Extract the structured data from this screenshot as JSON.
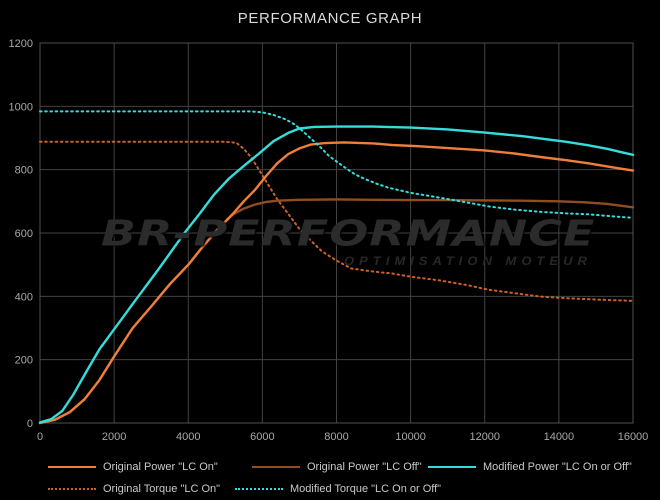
{
  "title": "PERFORMANCE GRAPH",
  "watermark": {
    "main": "BR-PERFORMANCE",
    "sub": "OPTIMISATION MOTEUR"
  },
  "colors": {
    "background": "#000000",
    "grid": "#434343",
    "frame": "#515151",
    "axis_text": "#a8a8a8",
    "title_text": "#d9d9d9",
    "legend_text": "#c9c9c9",
    "orange": "#ee7e3a",
    "brown": "#8e4e22",
    "cyan": "#35dcdc",
    "orange_dotted": "#c96226",
    "watermark": "#2b2b2b"
  },
  "chart_data": {
    "type": "line",
    "title": "PERFORMANCE GRAPH",
    "xlabel": "",
    "ylabel": "",
    "x_axis": {
      "min": 0,
      "max": 16000,
      "tick_step": 2000,
      "ticks": [
        0,
        2000,
        4000,
        6000,
        8000,
        10000,
        12000,
        14000,
        16000
      ]
    },
    "y_axis": {
      "min": 0,
      "max": 1200,
      "tick_step": 200,
      "ticks": [
        0,
        200,
        400,
        600,
        800,
        1000,
        1200
      ]
    },
    "grid": true,
    "legend_position": "bottom",
    "series": [
      {
        "name": "Original Power \"LC On\"",
        "color": "#ee7e3a",
        "style": "solid",
        "points": [
          [
            0,
            0
          ],
          [
            400,
            10
          ],
          [
            800,
            34
          ],
          [
            1200,
            75
          ],
          [
            1600,
            135
          ],
          [
            2000,
            210
          ],
          [
            2500,
            300
          ],
          [
            3000,
            368
          ],
          [
            3500,
            438
          ],
          [
            4000,
            500
          ],
          [
            4400,
            558
          ],
          [
            4800,
            612
          ],
          [
            5200,
            660
          ],
          [
            5500,
            700
          ],
          [
            5800,
            736
          ],
          [
            6100,
            780
          ],
          [
            6400,
            820
          ],
          [
            6700,
            849
          ],
          [
            7000,
            867
          ],
          [
            7300,
            879
          ],
          [
            7700,
            884
          ],
          [
            8200,
            886
          ],
          [
            9000,
            883
          ],
          [
            9500,
            878
          ],
          [
            10200,
            874
          ],
          [
            11000,
            868
          ],
          [
            12000,
            861
          ],
          [
            12800,
            851
          ],
          [
            13500,
            840
          ],
          [
            14200,
            830
          ],
          [
            14800,
            820
          ],
          [
            15400,
            808
          ],
          [
            16000,
            797
          ]
        ]
      },
      {
        "name": "Original Power \"LC Off\"",
        "color": "#8e4e22",
        "style": "solid",
        "points": [
          [
            0,
            0
          ],
          [
            400,
            10
          ],
          [
            800,
            34
          ],
          [
            1200,
            75
          ],
          [
            1600,
            135
          ],
          [
            2000,
            210
          ],
          [
            2500,
            300
          ],
          [
            3000,
            368
          ],
          [
            3500,
            438
          ],
          [
            4000,
            500
          ],
          [
            4400,
            558
          ],
          [
            4800,
            612
          ],
          [
            5200,
            658
          ],
          [
            5500,
            677
          ],
          [
            5800,
            690
          ],
          [
            6100,
            698
          ],
          [
            6400,
            702
          ],
          [
            7000,
            705
          ],
          [
            8000,
            706
          ],
          [
            9000,
            705
          ],
          [
            10000,
            704
          ],
          [
            11000,
            704
          ],
          [
            12000,
            703
          ],
          [
            13000,
            702
          ],
          [
            14000,
            700
          ],
          [
            14700,
            697
          ],
          [
            15300,
            692
          ],
          [
            16000,
            681
          ]
        ]
      },
      {
        "name": "Modified Power \"LC On or Off\"",
        "color": "#35dcdc",
        "style": "solid",
        "points": [
          [
            0,
            2
          ],
          [
            300,
            12
          ],
          [
            600,
            38
          ],
          [
            900,
            90
          ],
          [
            1200,
            152
          ],
          [
            1600,
            232
          ],
          [
            2000,
            296
          ],
          [
            2600,
            392
          ],
          [
            3200,
            486
          ],
          [
            3900,
            600
          ],
          [
            4300,
            660
          ],
          [
            4700,
            722
          ],
          [
            5100,
            772
          ],
          [
            5500,
            812
          ],
          [
            5900,
            850
          ],
          [
            6300,
            890
          ],
          [
            6700,
            916
          ],
          [
            7000,
            930
          ],
          [
            7400,
            935
          ],
          [
            8000,
            936
          ],
          [
            9000,
            936
          ],
          [
            10000,
            933
          ],
          [
            11000,
            927
          ],
          [
            12000,
            917
          ],
          [
            13000,
            906
          ],
          [
            13600,
            897
          ],
          [
            14200,
            888
          ],
          [
            14800,
            877
          ],
          [
            15300,
            866
          ],
          [
            15700,
            855
          ],
          [
            16000,
            847
          ]
        ]
      },
      {
        "name": "Original Torque \"LC On\"",
        "color": "#c96226",
        "style": "dotted",
        "points": [
          [
            0,
            888
          ],
          [
            1000,
            888
          ],
          [
            2000,
            888
          ],
          [
            3000,
            888
          ],
          [
            4000,
            888
          ],
          [
            5000,
            888
          ],
          [
            5300,
            885
          ],
          [
            5500,
            866
          ],
          [
            5700,
            838
          ],
          [
            5900,
            801
          ],
          [
            6100,
            763
          ],
          [
            6400,
            707
          ],
          [
            6700,
            660
          ],
          [
            7000,
            613
          ],
          [
            7300,
            577
          ],
          [
            7600,
            543
          ],
          [
            8000,
            513
          ],
          [
            8400,
            488
          ],
          [
            9000,
            478
          ],
          [
            9500,
            472
          ],
          [
            10000,
            462
          ],
          [
            10800,
            450
          ],
          [
            11500,
            436
          ],
          [
            12100,
            421
          ],
          [
            12800,
            410
          ],
          [
            13500,
            399
          ],
          [
            14200,
            394
          ],
          [
            14800,
            391
          ],
          [
            15400,
            388
          ],
          [
            16000,
            386
          ]
        ]
      },
      {
        "name": "Modified Torque \"LC On or Off\"",
        "color": "#35dcdc",
        "style": "dotted",
        "points": [
          [
            0,
            984
          ],
          [
            1000,
            984
          ],
          [
            2000,
            984
          ],
          [
            3000,
            984
          ],
          [
            4000,
            984
          ],
          [
            5000,
            984
          ],
          [
            5700,
            984
          ],
          [
            6000,
            981
          ],
          [
            6300,
            973
          ],
          [
            6600,
            960
          ],
          [
            6800,
            948
          ],
          [
            7000,
            931
          ],
          [
            7300,
            899
          ],
          [
            7600,
            867
          ],
          [
            7800,
            843
          ],
          [
            8200,
            809
          ],
          [
            8500,
            785
          ],
          [
            8800,
            769
          ],
          [
            9100,
            755
          ],
          [
            9400,
            743
          ],
          [
            10000,
            727
          ],
          [
            10800,
            711
          ],
          [
            11500,
            697
          ],
          [
            12100,
            684
          ],
          [
            12800,
            674
          ],
          [
            13500,
            667
          ],
          [
            14200,
            662
          ],
          [
            14800,
            659
          ],
          [
            15400,
            653
          ],
          [
            16000,
            648
          ]
        ]
      }
    ]
  }
}
